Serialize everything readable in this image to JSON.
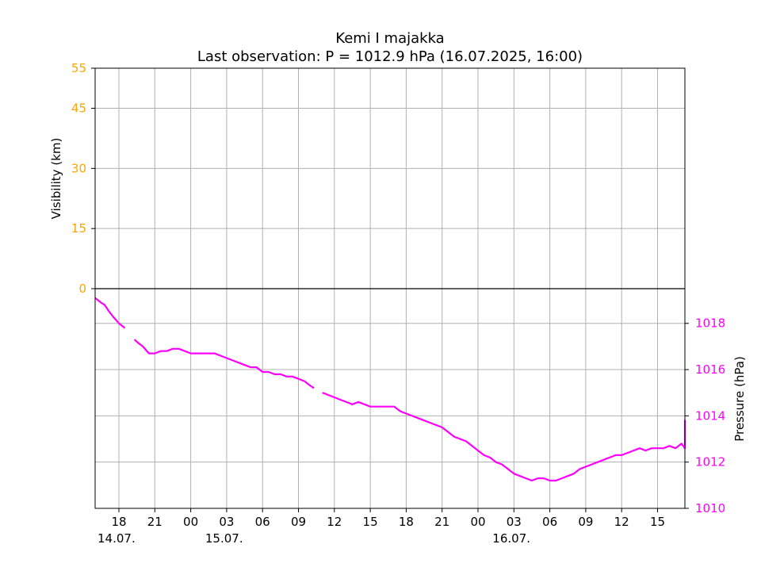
{
  "chart_data": {
    "type": "line",
    "title": "Kemi I majakka",
    "subtitle": "Last observation: P = 1012.9 hPa (16.07.2025, 16:00)",
    "colors": {
      "visibility": "#ffa500",
      "pressure": "#ff00ff",
      "grid": "#b0b0b0"
    },
    "grid": true,
    "x_ticks": [
      "18",
      "21",
      "00",
      "03",
      "06",
      "09",
      "12",
      "15",
      "18",
      "21",
      "00",
      "03",
      "06",
      "09",
      "12",
      "15"
    ],
    "date_labels": [
      "14.07.",
      "15.07.",
      "16.07."
    ],
    "visibility_axis": {
      "label": "Visibility (km)",
      "ticks": [
        "0",
        "15",
        "30",
        "45",
        "55"
      ],
      "ylim": [
        0,
        55
      ]
    },
    "pressure_axis": {
      "label": "Pressure (hPa)",
      "ticks": [
        "1010",
        "1012",
        "1014",
        "1016",
        "1018"
      ],
      "ylim": [
        1010,
        1019.5
      ]
    },
    "series": [
      {
        "name": "Pressure (hPa)",
        "axis": "pressure",
        "x_hours_relative": [
          -2.0,
          -1.5,
          -1.2,
          -0.8,
          -0.5,
          0.0,
          0.5,
          0.8,
          1.3,
          1.5,
          2.0,
          2.5,
          3.0,
          3.5,
          4.0,
          4.5,
          5.0,
          5.5,
          6.0,
          6.5,
          7.0,
          7.5,
          8.0,
          8.5,
          9.0,
          9.5,
          10.0,
          10.5,
          11.0,
          11.5,
          12.0,
          12.5,
          13.0,
          13.5,
          14.0,
          14.5,
          15.0,
          15.5,
          16.0,
          16.3,
          16.5,
          17.0,
          17.5,
          18.0,
          18.5,
          19.0,
          19.5,
          20.0,
          20.5,
          21.0,
          21.5,
          22.0,
          22.5,
          23.0,
          23.5,
          24.0,
          24.5,
          25.0,
          25.5,
          26.0,
          26.5,
          27.0,
          27.5,
          28.0,
          28.5,
          29.0,
          29.5,
          30.0,
          30.5,
          31.0,
          31.5,
          32.0,
          32.5,
          33.0,
          33.5,
          34.0,
          34.5,
          35.0,
          35.5,
          36.0,
          36.5,
          37.0,
          37.5,
          38.0,
          38.5,
          39.0,
          39.5,
          40.0,
          40.5,
          41.0,
          41.5,
          42.0,
          42.5,
          43.0,
          43.5,
          44.0,
          44.5,
          45.0,
          45.5,
          46.0,
          46.5,
          47.0,
          47.5,
          48.0,
          48.5,
          49.0,
          49.5,
          50.0,
          50.5,
          51.0,
          51.5,
          52.0,
          52.5,
          53.0,
          53.5,
          54.0,
          54.5,
          55.0,
          55.5,
          56.0,
          56.5,
          57.0,
          57.5,
          58.0,
          58.5,
          59.0,
          59.5,
          60.0,
          60.5,
          61.0,
          61.5,
          62.0,
          62.5,
          63.0,
          63.5,
          64.0
        ],
        "values": [
          1019.1,
          1018.9,
          1018.8,
          1018.5,
          1018.3,
          1018.0,
          1017.8,
          null,
          1017.3,
          1017.2,
          1017.0,
          1016.7,
          1016.7,
          1016.8,
          1016.8,
          1016.9,
          1016.9,
          1016.8,
          1016.7,
          1016.7,
          1016.7,
          1016.7,
          1016.7,
          1016.6,
          1016.5,
          1016.4,
          1016.3,
          1016.2,
          1016.1,
          1016.1,
          1015.9,
          1015.9,
          1015.8,
          1015.8,
          1015.7,
          1015.7,
          1015.6,
          1015.5,
          1015.3,
          1015.2,
          null,
          1015.0,
          1014.9,
          1014.8,
          1014.7,
          1014.6,
          1014.5,
          1014.6,
          1014.5,
          1014.4,
          1014.4,
          1014.4,
          1014.4,
          1014.4,
          1014.2,
          1014.1,
          1014.0,
          1013.9,
          1013.8,
          1013.7,
          1013.6,
          1013.5,
          1013.3,
          1013.1,
          1013.0,
          1012.9,
          1012.7,
          1012.5,
          1012.3,
          1012.2,
          1012.0,
          1011.9,
          1011.7,
          1011.5,
          1011.4,
          1011.3,
          1011.2,
          1011.3,
          1011.3,
          1011.2,
          1011.2,
          1011.3,
          1011.4,
          1011.5,
          1011.7,
          1011.8,
          1011.9,
          1012.0,
          1012.1,
          1012.2,
          1012.3,
          1012.3,
          1012.4,
          1012.5,
          1012.6,
          1012.5,
          1012.6,
          1012.6,
          1012.6,
          1012.7,
          1012.6,
          1012.8,
          1012.6,
          1012.7,
          1012.8,
          1012.9,
          1012.9,
          1013.1,
          1013.2,
          1013.3,
          1013.4,
          1013.6,
          1013.7,
          1013.7,
          1013.8,
          1013.8,
          1013.7,
          1013.8,
          1013.8,
          1013.7,
          1013.7,
          1013.7,
          1013.6,
          1013.5,
          1013.4,
          1013.3,
          1013.3,
          1013.2,
          1013.2,
          1013.2,
          1013.1,
          1012.9,
          null,
          null,
          null,
          null
        ]
      }
    ]
  }
}
